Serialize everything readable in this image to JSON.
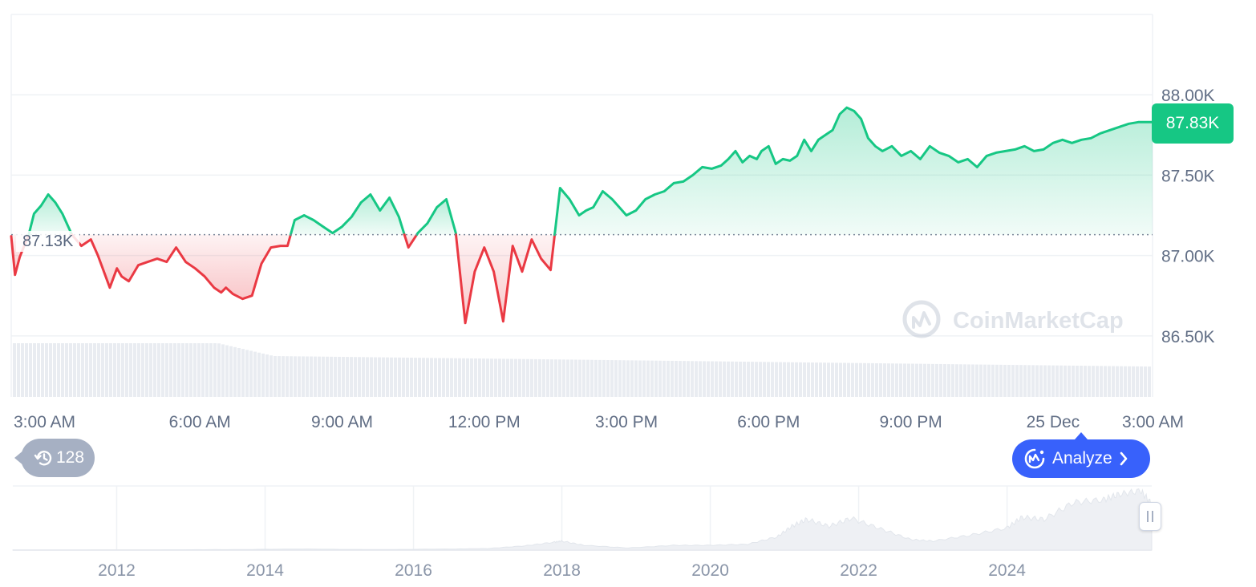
{
  "colors": {
    "up": "#16c784",
    "down": "#ea3943",
    "grid": "#eff2f5",
    "accent": "#3861fb",
    "badge": "#16c784"
  },
  "price_badge": "87.83K",
  "baseline_label": "87.13K",
  "watermark": "CoinMarketCap",
  "history_count": "128",
  "analyze_label": "Analyze",
  "icons": {
    "history": "history-clock-icon",
    "analyze": "coinmarketcap-ai-icon",
    "chevron": "chevron-right-icon",
    "handle": "drag-handle-icon"
  },
  "chart_data": [
    {
      "type": "area",
      "baseline": 87.13,
      "y_unit": "K",
      "x_ticks": [
        "3:00 AM",
        "6:00 AM",
        "9:00 AM",
        "12:00 PM",
        "3:00 PM",
        "6:00 PM",
        "9:00 PM",
        "25 Dec",
        "3:00 AM"
      ],
      "y_ticks": [
        "88.00K",
        "87.50K",
        "87.00K",
        "86.50K"
      ],
      "y_tick_values": [
        88.0,
        87.5,
        87.0,
        86.5
      ],
      "ylim": [
        86.12,
        88.5
      ],
      "x_range_hours": [
        -0.98,
        23.1
      ],
      "grid": true,
      "current_price": 87.83,
      "x": [
        -0.98,
        -0.9,
        -0.8,
        -0.72,
        -0.62,
        -0.5,
        -0.35,
        -0.2,
        -0.05,
        0.1,
        0.3,
        0.5,
        0.7,
        0.85,
        1.0,
        1.1,
        1.25,
        1.35,
        1.5,
        1.7,
        1.9,
        2.1,
        2.3,
        2.5,
        2.7,
        2.9,
        3.1,
        3.3,
        3.45,
        3.55,
        3.7,
        3.9,
        4.1,
        4.3,
        4.5,
        4.7,
        4.85,
        5.0,
        5.2,
        5.4,
        5.6,
        5.8,
        6.0,
        6.2,
        6.4,
        6.6,
        6.8,
        7.0,
        7.2,
        7.4,
        7.6,
        7.8,
        8.0,
        8.2,
        8.4,
        8.6,
        8.8,
        9.0,
        9.2,
        9.4,
        9.6,
        9.8,
        10.0,
        10.2,
        10.4,
        10.6,
        10.8,
        11.0,
        11.15,
        11.3,
        11.5,
        11.7,
        11.85,
        12.0,
        12.2,
        12.4,
        12.6,
        12.8,
        13.0,
        13.2,
        13.4,
        13.6,
        13.8,
        14.0,
        14.15,
        14.3,
        14.45,
        14.6,
        14.75,
        14.85,
        15.0,
        15.15,
        15.3,
        15.45,
        15.6,
        15.75,
        15.9,
        16.05,
        16.2,
        16.35,
        16.5,
        16.65,
        16.8,
        16.95,
        17.1,
        17.25,
        17.4,
        17.6,
        17.8,
        18.0,
        18.2,
        18.4,
        18.6,
        18.8,
        19.0,
        19.2,
        19.4,
        19.6,
        19.8,
        20.0,
        20.2,
        20.4,
        20.6,
        20.8,
        21.0,
        21.2,
        21.4,
        21.6,
        21.8,
        22.0,
        22.2,
        22.4,
        22.6,
        22.8,
        23.0,
        23.1
      ],
      "y": [
        87.12,
        86.88,
        86.99,
        87.05,
        87.12,
        87.26,
        87.31,
        87.38,
        87.33,
        87.26,
        87.13,
        87.06,
        87.1,
        87.0,
        86.88,
        86.8,
        86.92,
        86.87,
        86.84,
        86.94,
        86.96,
        86.98,
        86.96,
        87.05,
        86.96,
        86.92,
        86.87,
        86.8,
        86.77,
        86.8,
        86.76,
        86.73,
        86.75,
        86.95,
        87.05,
        87.06,
        87.06,
        87.22,
        87.25,
        87.22,
        87.18,
        87.14,
        87.18,
        87.24,
        87.33,
        87.38,
        87.28,
        87.36,
        87.24,
        87.05,
        87.14,
        87.2,
        87.3,
        87.35,
        87.14,
        86.58,
        86.9,
        87.05,
        86.9,
        86.59,
        87.06,
        86.9,
        87.1,
        86.98,
        86.91,
        87.42,
        87.35,
        87.25,
        87.28,
        87.3,
        87.4,
        87.35,
        87.3,
        87.25,
        87.28,
        87.35,
        87.38,
        87.4,
        87.45,
        87.46,
        87.5,
        87.55,
        87.54,
        87.56,
        87.6,
        87.65,
        87.58,
        87.62,
        87.6,
        87.65,
        87.68,
        87.57,
        87.6,
        87.59,
        87.62,
        87.72,
        87.65,
        87.72,
        87.75,
        87.78,
        87.88,
        87.92,
        87.9,
        87.85,
        87.73,
        87.68,
        87.65,
        87.68,
        87.62,
        87.65,
        87.6,
        87.68,
        87.64,
        87.62,
        87.58,
        87.6,
        87.55,
        87.62,
        87.64,
        87.65,
        87.66,
        87.68,
        87.65,
        87.66,
        87.7,
        87.72,
        87.7,
        87.72,
        87.73,
        87.76,
        87.78,
        87.8,
        87.82,
        87.83,
        87.83,
        87.83
      ]
    },
    {
      "type": "area",
      "role": "navigator",
      "x_ticks": [
        "2012",
        "2014",
        "2016",
        "2018",
        "2020",
        "2022",
        "2024"
      ],
      "x": [
        2010.6,
        2011.5,
        2012.5,
        2013.5,
        2014.5,
        2015.5,
        2016.5,
        2017.0,
        2017.5,
        2017.9,
        2018.0,
        2018.3,
        2018.9,
        2019.5,
        2020.0,
        2020.5,
        2020.9,
        2021.1,
        2021.3,
        2021.6,
        2021.9,
        2022.3,
        2022.7,
        2023.0,
        2023.5,
        2024.0,
        2024.2,
        2024.5,
        2024.9,
        2025.3,
        2025.5,
        2025.8,
        2025.95
      ],
      "y": [
        0.1,
        0.2,
        0.5,
        1,
        2,
        1,
        2,
        3,
        8,
        15,
        17,
        9,
        4,
        9,
        9,
        11,
        25,
        45,
        58,
        45,
        60,
        40,
        20,
        17,
        28,
        42,
        62,
        58,
        90,
        95,
        105,
        112,
        87
      ]
    }
  ]
}
